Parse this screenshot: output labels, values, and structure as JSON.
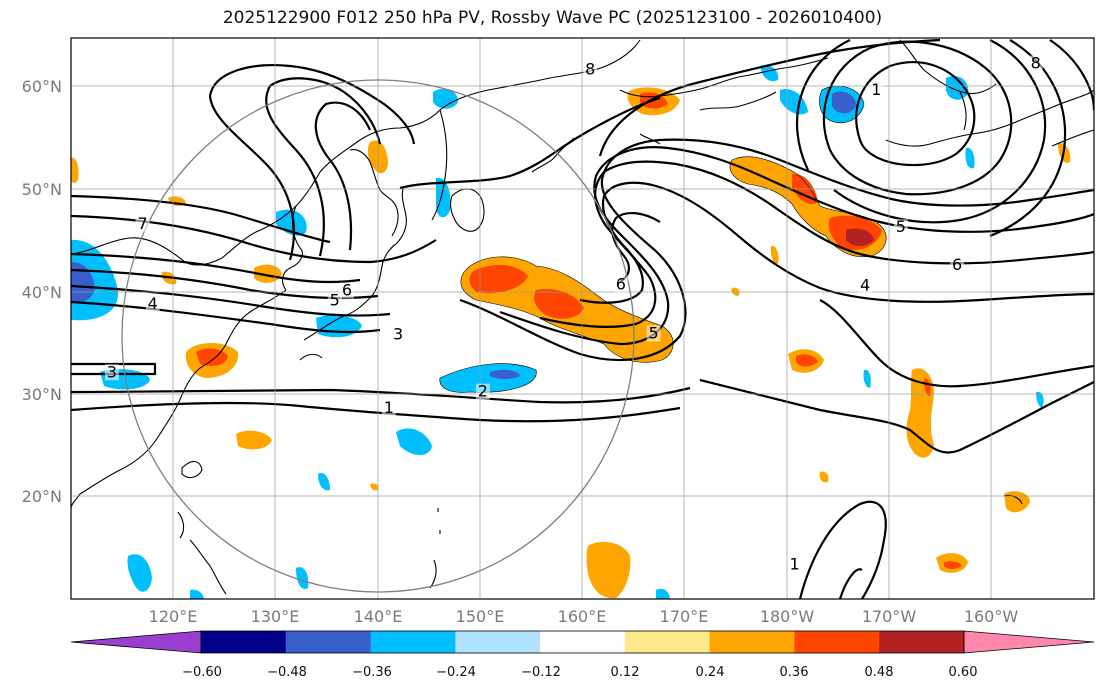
{
  "title": "2025122900 F012 250 hPa PV, Rossby Wave PC (2025123100 - 2026010400)",
  "lat_labels": [
    "60°N",
    "50°N",
    "40°N",
    "30°N",
    "20°N"
  ],
  "lon_labels": [
    "120°E",
    "130°E",
    "140°E",
    "150°E",
    "160°E",
    "170°E",
    "180°W",
    "170°W",
    "160°W"
  ],
  "colorbar": {
    "ticks": [
      "−0.60",
      "−0.48",
      "−0.36",
      "−0.24",
      "−0.12",
      "0.12",
      "0.24",
      "0.36",
      "0.48",
      "0.60"
    ],
    "colors": [
      "#9b3fd0",
      "#00008b",
      "#3a5fcd",
      "#00bfff",
      "#b0e2ff",
      "#ffffff",
      "#ffe98a",
      "#ffa500",
      "#ff4500",
      "#b22222",
      "#ff88aa"
    ]
  },
  "contour_labels": [
    {
      "text": "7",
      "lon": 117,
      "lat": 46.5
    },
    {
      "text": "6",
      "lon": 137,
      "lat": 40
    },
    {
      "text": "5",
      "lon": 135.8,
      "lat": 39
    },
    {
      "text": "4",
      "lon": 118,
      "lat": 38.7
    },
    {
      "text": "3",
      "lon": 142,
      "lat": 35.7
    },
    {
      "text": "3",
      "lon": 114,
      "lat": 32
    },
    {
      "text": "2",
      "lon": 150.3,
      "lat": 30.1
    },
    {
      "text": "1",
      "lon": 141.1,
      "lat": 28.5
    },
    {
      "text": "6",
      "lon": 163.8,
      "lat": 40.6
    },
    {
      "text": "5",
      "lon": 167,
      "lat": 35.8
    },
    {
      "text": "1",
      "lon": -171.2,
      "lat": 59.6
    },
    {
      "text": "5",
      "lon": -168.8,
      "lat": 46.2
    },
    {
      "text": "6",
      "lon": -163.3,
      "lat": 42.5
    },
    {
      "text": "4",
      "lon": -172.3,
      "lat": 40.5
    },
    {
      "text": "1",
      "lon": 180.8,
      "lat": 13.2
    },
    {
      "text": "8",
      "lon": 160.8,
      "lat": 61.6
    },
    {
      "text": "8",
      "lon": -155.6,
      "lat": 62.2
    }
  ]
}
